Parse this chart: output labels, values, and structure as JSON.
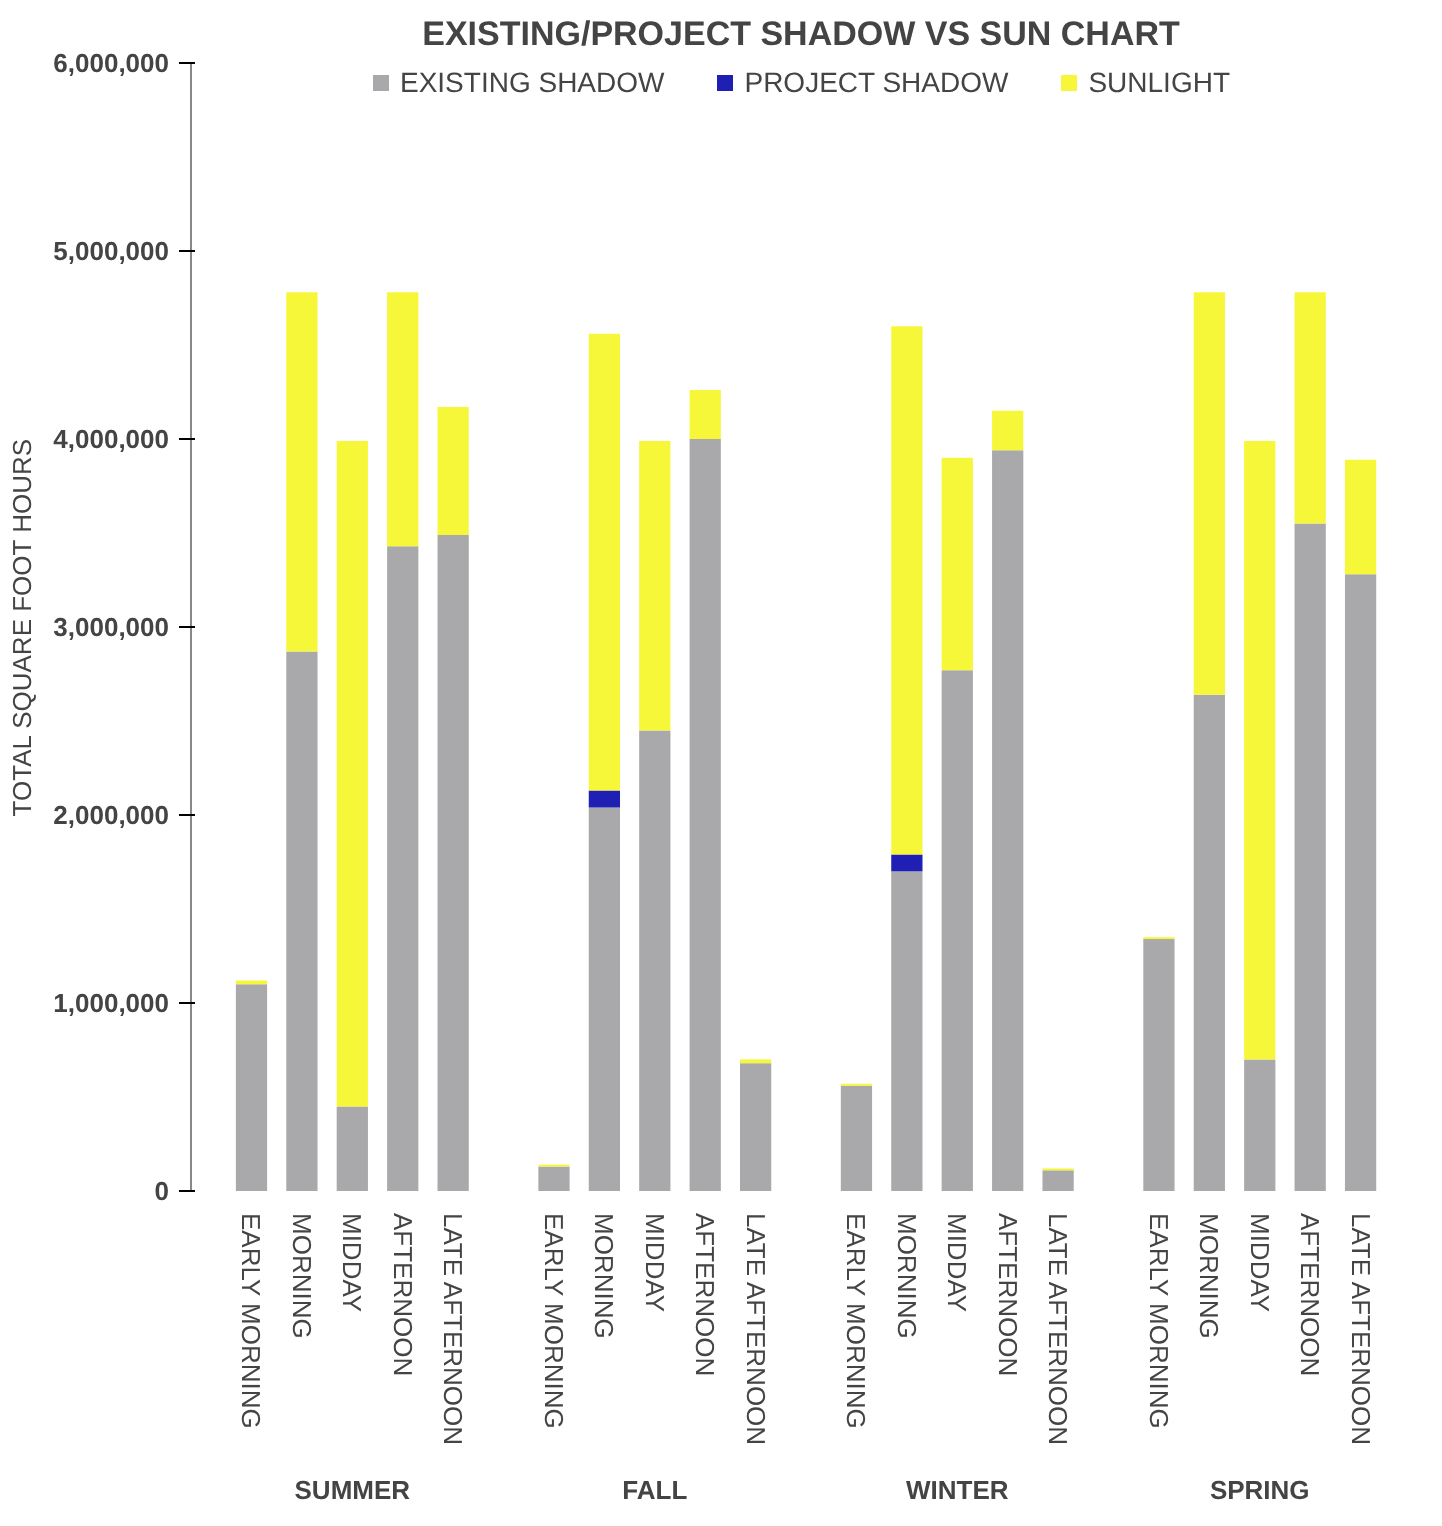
{
  "chart_data": {
    "type": "bar",
    "title": "EXISTING/PROJECT SHADOW VS SUN CHART",
    "ylabel": "TOTAL SQUARE FOOT HOURS",
    "categories": [
      "EARLY MORNING",
      "MORNING",
      "MIDDAY",
      "AFTERNOON",
      "LATE AFTERNOON",
      "EARLY MORNING",
      "MORNING",
      "MIDDAY",
      "AFTERNOON",
      "LATE AFTERNOON",
      "EARLY MORNING",
      "MORNING",
      "MIDDAY",
      "AFTERNOON",
      "LATE AFTERNOON",
      "EARLY MORNING",
      "MORNING",
      "MIDDAY",
      "AFTERNOON",
      "LATE AFTERNOON"
    ],
    "annotations": [
      "SUMMER",
      "FALL",
      "WINTER",
      "SPRING"
    ],
    "stacked": true,
    "series": [
      {
        "name": "EXISTING SHADOW",
        "color": "#a9a9ab",
        "values": [
          1100000,
          2870000,
          450000,
          3430000,
          3490000,
          130000,
          2040000,
          2450000,
          4000000,
          680000,
          560000,
          1700000,
          2770000,
          3940000,
          110000,
          1340000,
          2640000,
          700000,
          3550000,
          3280000
        ]
      },
      {
        "name": "PROJECT SHADOW",
        "color": "#1f1fb4",
        "values": [
          0,
          0,
          0,
          0,
          0,
          0,
          90000,
          0,
          0,
          0,
          0,
          90000,
          0,
          0,
          0,
          0,
          0,
          0,
          0,
          0
        ]
      },
      {
        "name": "SUNLIGHT",
        "color": "#f7f73a",
        "values": [
          20000,
          1910000,
          3540000,
          1350000,
          680000,
          10000,
          2430000,
          1540000,
          260000,
          20000,
          10000,
          2810000,
          1130000,
          210000,
          10000,
          10000,
          2140000,
          3290000,
          1230000,
          610000
        ]
      }
    ],
    "ylim": [
      0,
      6000000
    ],
    "yticks": [
      {
        "value": 0,
        "label": "0"
      },
      {
        "value": 1000000,
        "label": "1,000,000"
      },
      {
        "value": 2000000,
        "label": "2,000,000"
      },
      {
        "value": 3000000,
        "label": "3,000,000"
      },
      {
        "value": 4000000,
        "label": "4,000,000"
      },
      {
        "value": 5000000,
        "label": "5,000,000"
      },
      {
        "value": 6000000,
        "label": "6,000,000"
      }
    ],
    "grid": false,
    "legend": "top"
  }
}
